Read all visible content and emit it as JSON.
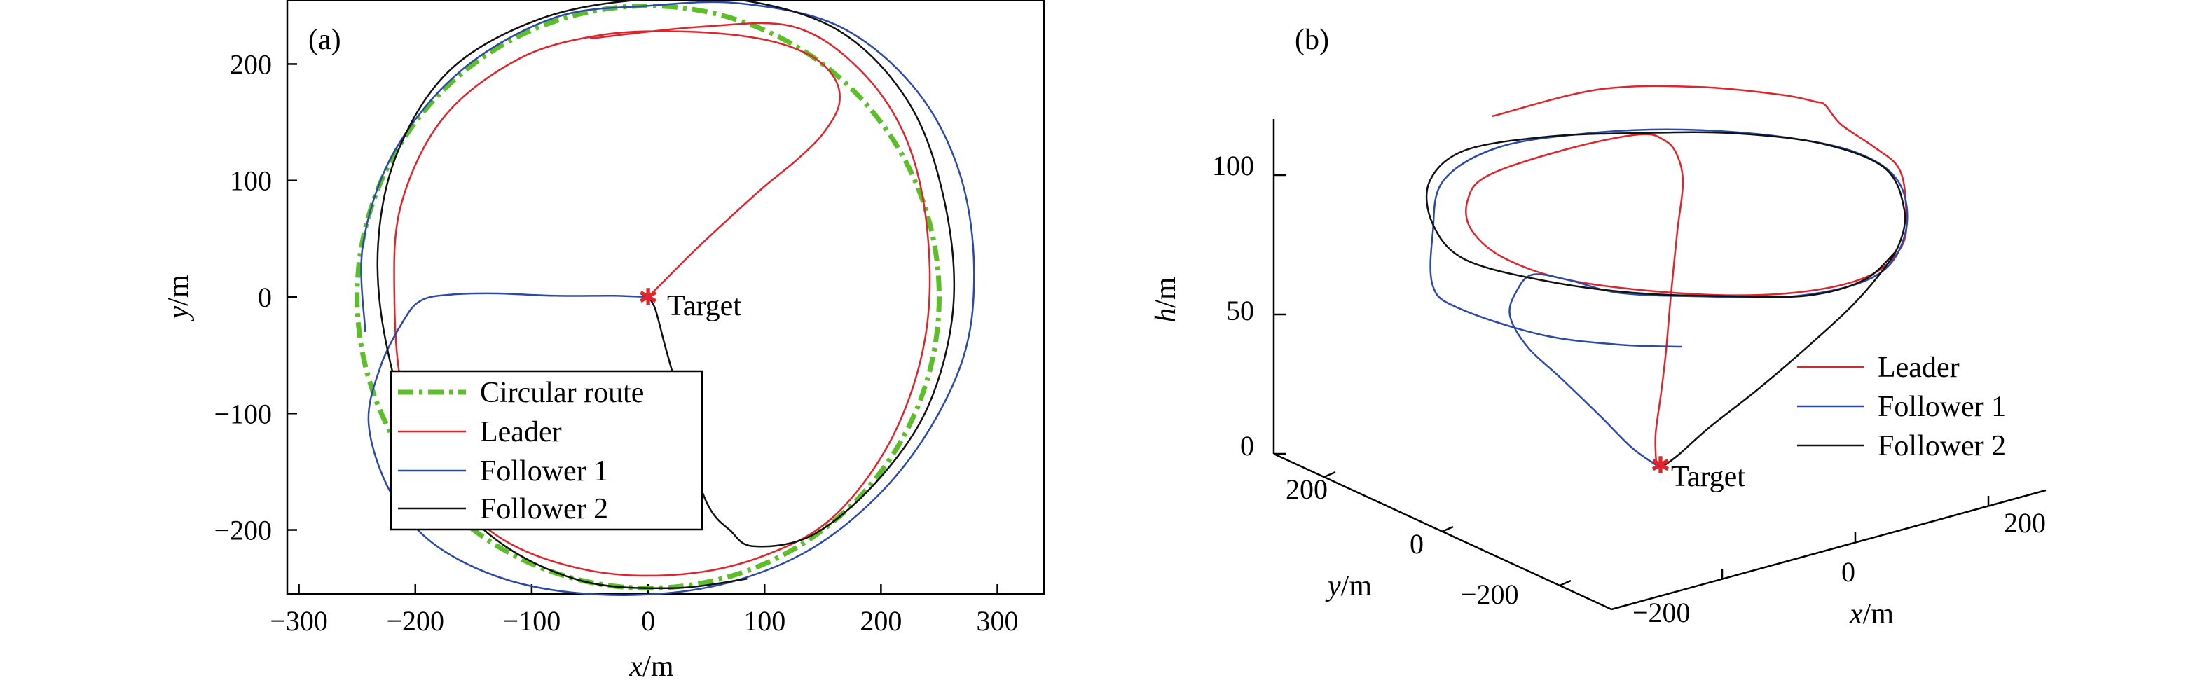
{
  "colors": {
    "circular_route": "#5cbf2a",
    "leader": "#e0242b",
    "follower1": "#2b4aa8",
    "follower2": "#111111",
    "target": "#e0242b"
  },
  "chart_data": [
    {
      "panel": "(a)",
      "type": "line",
      "title": "",
      "xlabel_var": "x",
      "xlabel_unit": "/m",
      "ylabel_var": "y",
      "ylabel_unit": "/m",
      "xlim": [
        -310,
        340
      ],
      "ylim": [
        -255,
        255
      ],
      "xticks": [
        -300,
        -200,
        -100,
        0,
        100,
        200,
        300
      ],
      "yticks": [
        -200,
        -100,
        0,
        100,
        200
      ],
      "xtick_labels": [
        "−300",
        "−200",
        "−100",
        "0",
        "100",
        "200",
        "300"
      ],
      "ytick_labels": [
        "−200",
        "−100",
        "0",
        "100",
        "200"
      ],
      "grid": false,
      "legend_position": "bottom-left",
      "annotation": {
        "text": "Target",
        "x": 0,
        "y": 0
      },
      "series": [
        {
          "name": "Circular route",
          "color_key": "circular_route",
          "style": "dash-dot",
          "circle": {
            "cx": 0,
            "cy": 0,
            "r": 250
          }
        },
        {
          "name": "Leader",
          "color_key": "leader",
          "style": "solid",
          "points": [
            [
              0,
              0
            ],
            [
              15,
              15
            ],
            [
              40,
              40
            ],
            [
              70,
              68
            ],
            [
              100,
              95
            ],
            [
              128,
              118
            ],
            [
              150,
              140
            ],
            [
              164,
              165
            ],
            [
              160,
              188
            ],
            [
              138,
              208
            ],
            [
              95,
              222
            ],
            [
              30,
              228
            ],
            [
              -40,
              225
            ],
            [
              -110,
              205
            ],
            [
              -175,
              155
            ],
            [
              -212,
              80
            ],
            [
              -218,
              0
            ],
            [
              -210,
              -85
            ],
            [
              -180,
              -155
            ],
            [
              -125,
              -208
            ],
            [
              -50,
              -235
            ],
            [
              30,
              -238
            ],
            [
              100,
              -222
            ],
            [
              160,
              -188
            ],
            [
              210,
              -120
            ],
            [
              238,
              -35
            ],
            [
              240,
              55
            ],
            [
              222,
              135
            ],
            [
              182,
              195
            ],
            [
              125,
              232
            ],
            [
              45,
              232
            ],
            [
              -50,
              222
            ]
          ]
        },
        {
          "name": "Follower 1",
          "color_key": "follower1",
          "style": "solid",
          "points": [
            [
              0,
              0
            ],
            [
              -30,
              1
            ],
            [
              -80,
              1
            ],
            [
              -130,
              3
            ],
            [
              -170,
              2
            ],
            [
              -195,
              -3
            ],
            [
              -210,
              -20
            ],
            [
              -230,
              -60
            ],
            [
              -240,
              -110
            ],
            [
              -220,
              -170
            ],
            [
              -180,
              -215
            ],
            [
              -110,
              -246
            ],
            [
              -20,
              -256
            ],
            [
              70,
              -245
            ],
            [
              150,
              -210
            ],
            [
              220,
              -145
            ],
            [
              268,
              -60
            ],
            [
              280,
              20
            ],
            [
              268,
              105
            ],
            [
              230,
              178
            ],
            [
              165,
              232
            ],
            [
              80,
              252
            ],
            [
              0,
              250
            ],
            [
              -80,
              240
            ],
            [
              -160,
              195
            ],
            [
              -218,
              125
            ],
            [
              -245,
              45
            ],
            [
              -243,
              -30
            ]
          ]
        },
        {
          "name": "Follower 2",
          "color_key": "follower2",
          "style": "solid",
          "points": [
            [
              0,
              0
            ],
            [
              6,
              -10
            ],
            [
              14,
              -40
            ],
            [
              25,
              -80
            ],
            [
              35,
              -120
            ],
            [
              44,
              -160
            ],
            [
              55,
              -185
            ],
            [
              70,
              -200
            ],
            [
              90,
              -214
            ],
            [
              140,
              -205
            ],
            [
              195,
              -160
            ],
            [
              240,
              -95
            ],
            [
              262,
              -10
            ],
            [
              255,
              80
            ],
            [
              225,
              165
            ],
            [
              165,
              228
            ],
            [
              80,
              255
            ],
            [
              -10,
              255
            ],
            [
              -95,
              238
            ],
            [
              -170,
              195
            ],
            [
              -215,
              125
            ],
            [
              -232,
              45
            ],
            [
              -225,
              -40
            ],
            [
              -195,
              -135
            ],
            [
              -135,
              -205
            ],
            [
              -60,
              -243
            ],
            [
              20,
              -250
            ],
            [
              85,
              -242
            ]
          ]
        }
      ],
      "target_mark": {
        "x": 0,
        "y": 0,
        "symbol": "✱"
      }
    },
    {
      "panel": "(b)",
      "type": "line",
      "projection": "3d",
      "title": "",
      "xlabel_var": "x",
      "xlabel_unit": "/m",
      "ylabel_var": "y",
      "ylabel_unit": "/m",
      "zlabel_var": "h",
      "zlabel_unit": "/m",
      "xlim": [
        -300,
        300
      ],
      "ylim": [
        -300,
        300
      ],
      "zlim": [
        0,
        120
      ],
      "xticks": [
        -200,
        0,
        200
      ],
      "yticks": [
        -200,
        0,
        200
      ],
      "zticks": [
        0,
        50,
        100
      ],
      "xtick_labels": [
        "−200",
        "0",
        "200"
      ],
      "ytick_labels": [
        "−200",
        "0",
        "200"
      ],
      "ztick_labels": [
        "0",
        "50",
        "100"
      ],
      "grid": false,
      "legend_position": "right",
      "annotation": {
        "text": "Target",
        "x": 0,
        "y": 0,
        "z": 0
      },
      "series": [
        {
          "name": "Leader",
          "color_key": "leader",
          "style": "solid",
          "path_points": [
            [
              2364,
              663
            ],
            [
              2363,
              620
            ],
            [
              2371,
              560
            ],
            [
              2378,
              500
            ],
            [
              2385,
              420
            ],
            [
              2394,
              330
            ],
            [
              2402,
              260
            ],
            [
              2393,
              220
            ],
            [
              2375,
              200
            ],
            [
              2340,
              192
            ],
            [
              2240,
              212
            ],
            [
              2125,
              250
            ],
            [
              2095,
              285
            ],
            [
              2100,
              328
            ],
            [
              2150,
              370
            ],
            [
              2250,
              402
            ],
            [
              2420,
              420
            ],
            [
              2560,
              418
            ],
            [
              2665,
              395
            ],
            [
              2715,
              350
            ],
            [
              2720,
              290
            ],
            [
              2710,
              240
            ],
            [
              2675,
              210
            ],
            [
              2628,
              178
            ],
            [
              2605,
              150
            ],
            [
              2590,
              145
            ],
            [
              2540,
              135
            ],
            [
              2420,
              124
            ],
            [
              2280,
              128
            ],
            [
              2130,
              166
            ]
          ]
        },
        {
          "name": "Follower 1",
          "color_key": "follower1",
          "style": "solid",
          "path_points": [
            [
              2370,
              668
            ],
            [
              2330,
              640
            ],
            [
              2285,
              595
            ],
            [
              2228,
              540
            ],
            [
              2180,
              495
            ],
            [
              2155,
              450
            ],
            [
              2165,
              415
            ],
            [
              2188,
              392
            ],
            [
              2240,
              400
            ],
            [
              2310,
              418
            ],
            [
              2420,
              423
            ],
            [
              2570,
              422
            ],
            [
              2680,
              392
            ],
            [
              2720,
              330
            ],
            [
              2710,
              260
            ],
            [
              2650,
              218
            ],
            [
              2540,
              195
            ],
            [
              2400,
              185
            ],
            [
              2270,
              190
            ],
            [
              2140,
              210
            ],
            [
              2060,
              258
            ],
            [
              2045,
              332
            ],
            [
              2045,
              408
            ],
            [
              2082,
              440
            ],
            [
              2200,
              478
            ],
            [
              2310,
              492
            ],
            [
              2400,
              495
            ]
          ]
        },
        {
          "name": "Follower 2",
          "color_key": "follower2",
          "style": "solid",
          "path_points": [
            [
              2370,
              668
            ],
            [
              2395,
              650
            ],
            [
              2440,
              610
            ],
            [
              2510,
              555
            ],
            [
              2580,
              495
            ],
            [
              2640,
              440
            ],
            [
              2680,
              395
            ],
            [
              2710,
              350
            ],
            [
              2718,
              300
            ],
            [
              2690,
              240
            ],
            [
              2600,
              205
            ],
            [
              2470,
              190
            ],
            [
              2340,
              190
            ],
            [
              2210,
              195
            ],
            [
              2090,
              215
            ],
            [
              2040,
              260
            ],
            [
              2045,
              320
            ],
            [
              2090,
              370
            ],
            [
              2200,
              400
            ],
            [
              2330,
              418
            ],
            [
              2470,
              423
            ],
            [
              2580,
              422
            ],
            [
              2660,
              400
            ],
            [
              2705,
              360
            ]
          ]
        }
      ],
      "target_mark": {
        "symbol": "✱"
      }
    }
  ]
}
